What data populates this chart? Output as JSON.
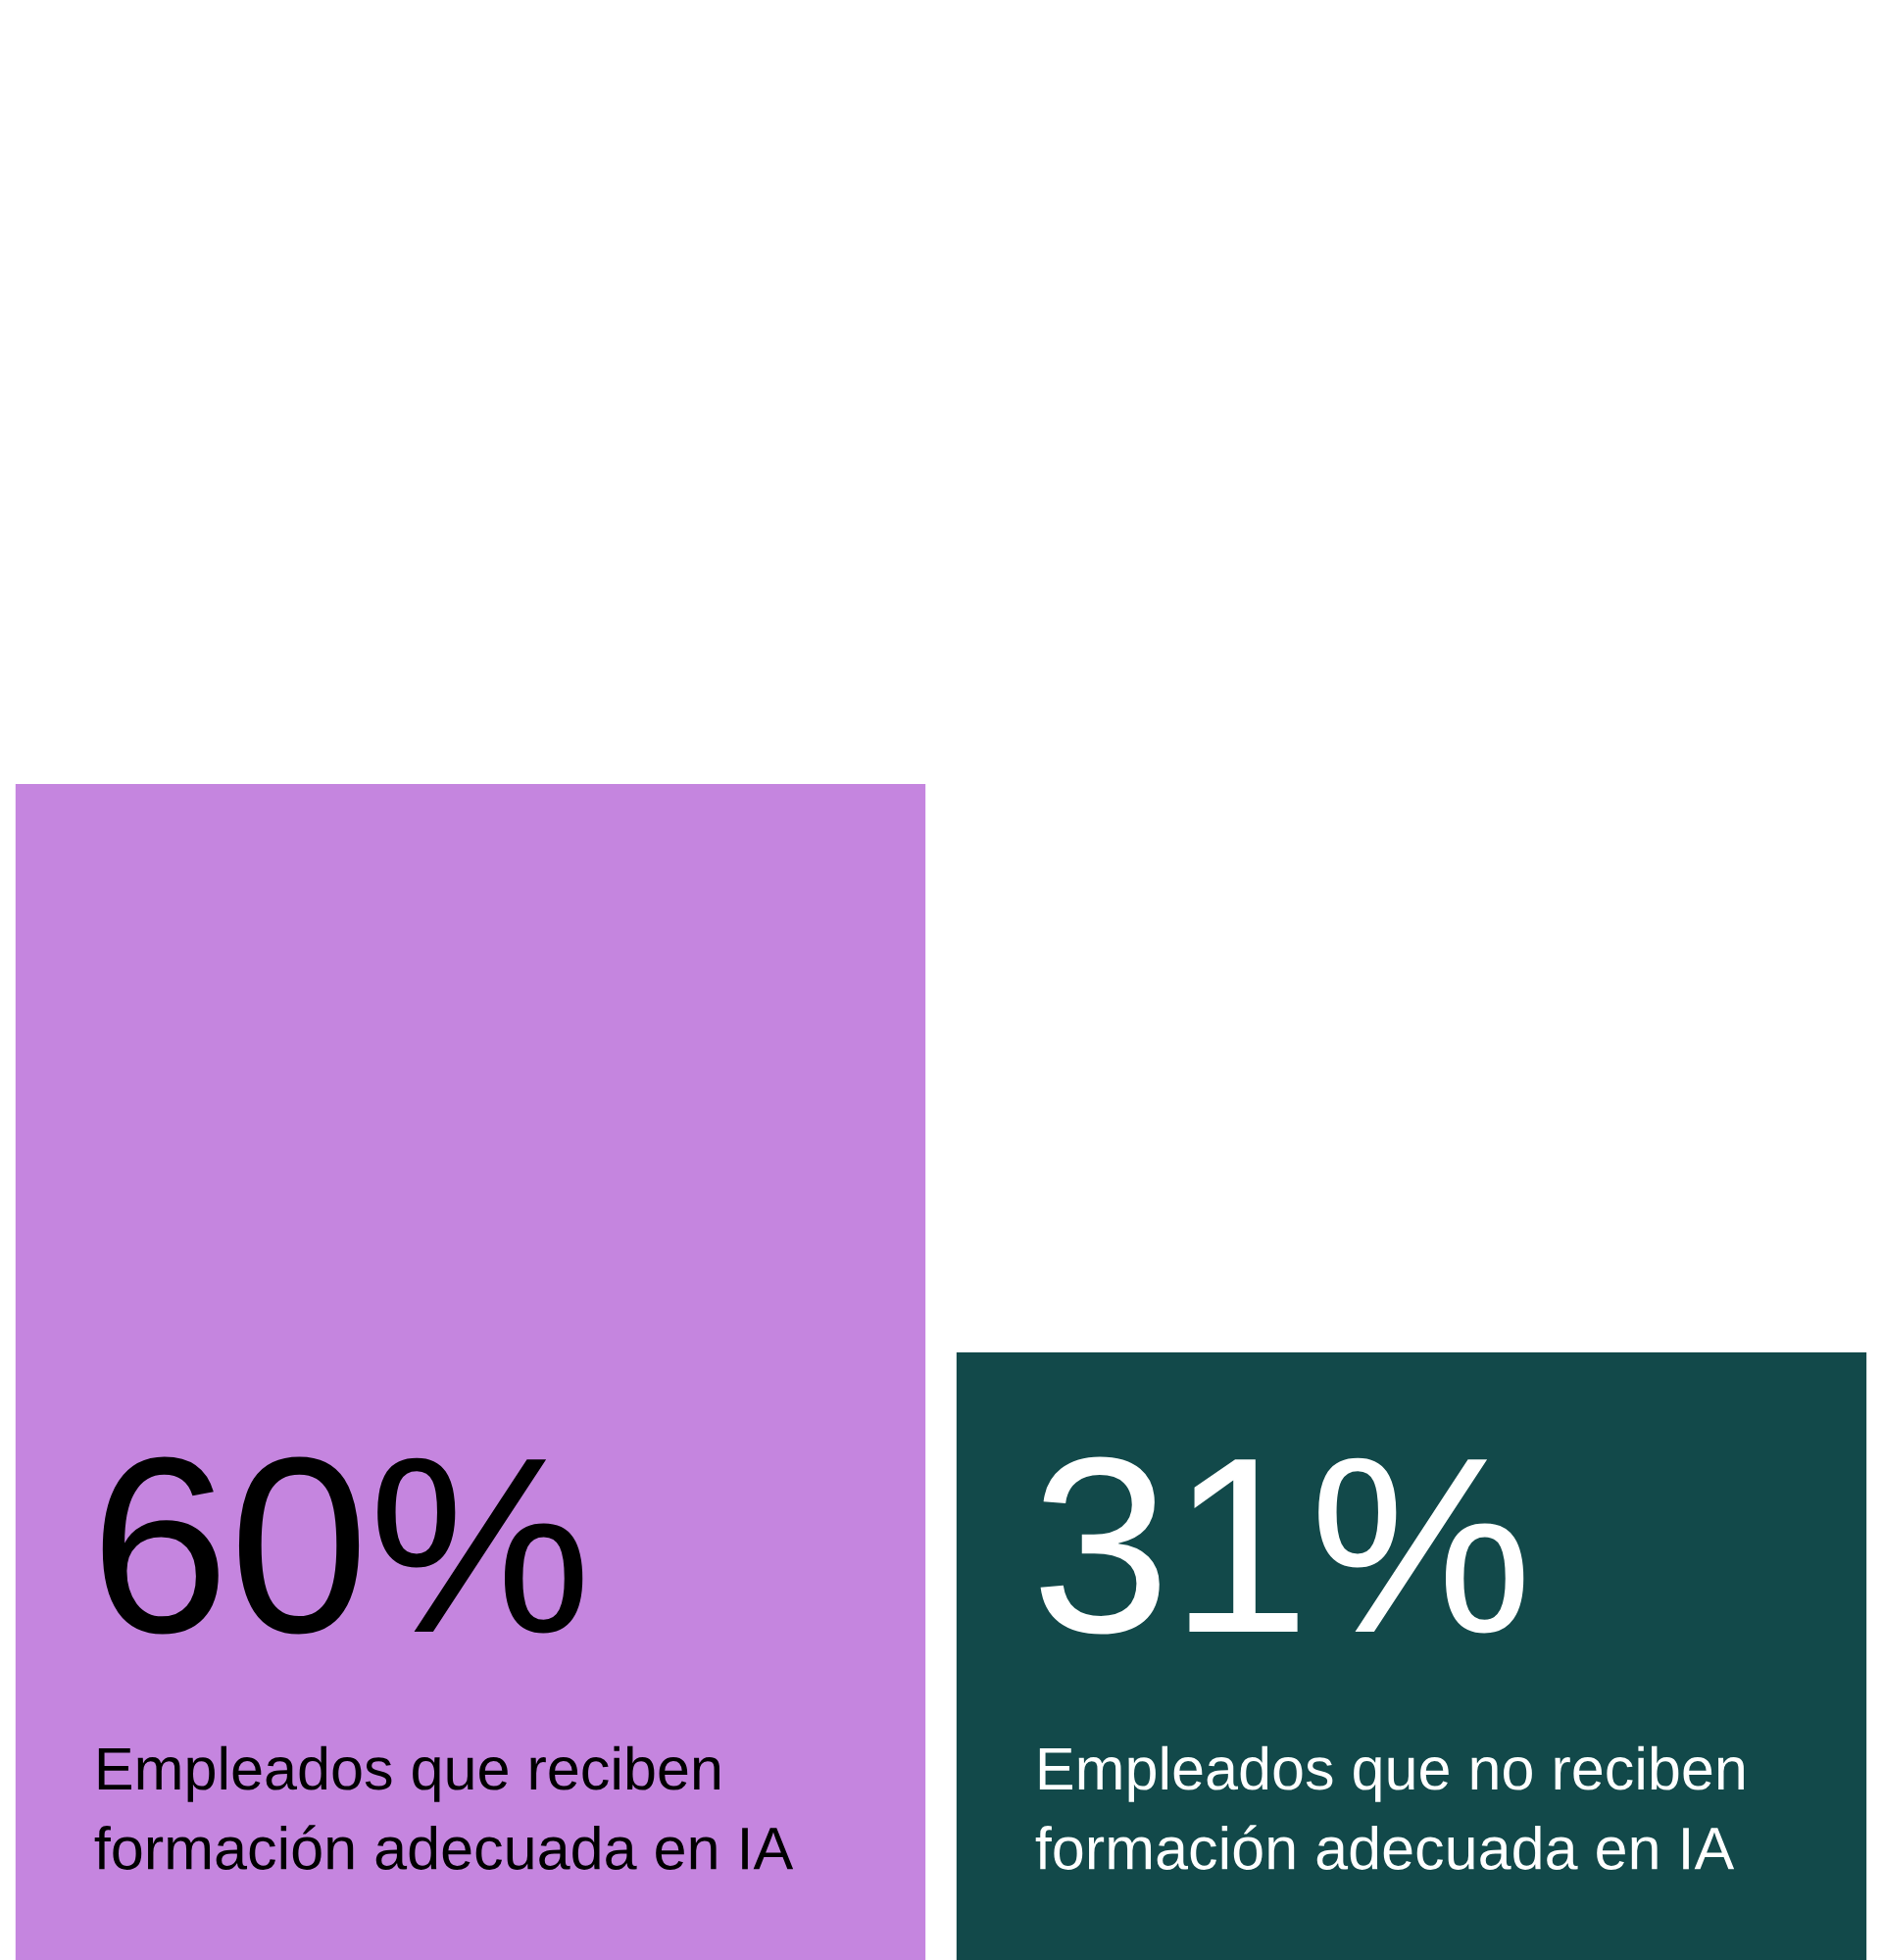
{
  "chart_data": {
    "type": "bar",
    "categories": [
      "Empleados que reciben formación adecuada en IA",
      "Empleados que no reciben formación adecuada en IA"
    ],
    "values": [
      60,
      31
    ],
    "colors": [
      "#c585df",
      "#12494a"
    ],
    "value_labels": [
      "60%",
      "31%"
    ]
  }
}
